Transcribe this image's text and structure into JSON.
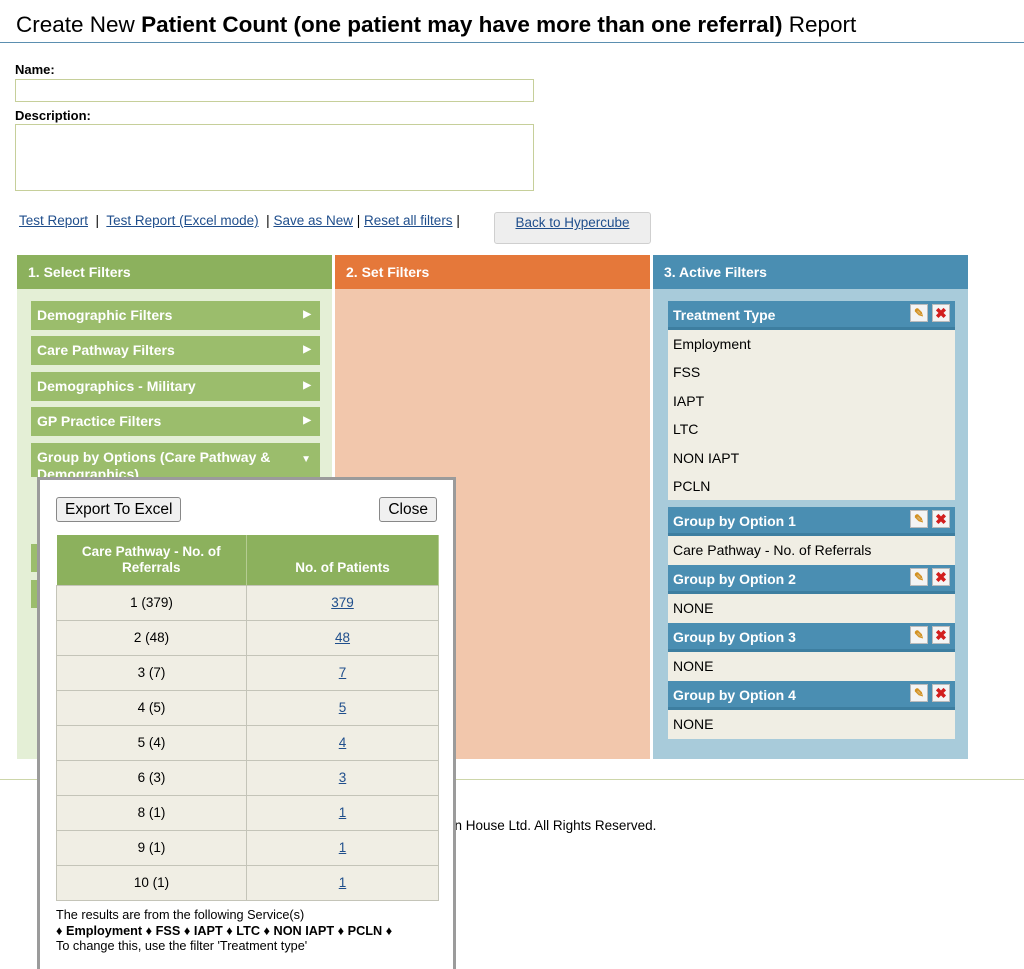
{
  "title": {
    "prefix": "Create New",
    "bold": "Patient Count (one patient may have more than one referral)",
    "suffix": "Report"
  },
  "form": {
    "name_label": "Name:",
    "name_value": "",
    "description_label": "Description:",
    "description_value": ""
  },
  "links": {
    "test_report": "Test Report",
    "test_report_excel": "Test Report (Excel mode)",
    "save_as_new": "Save as New",
    "reset_all": "Reset all filters",
    "separator": "|",
    "back_to_hypercube": "Back to Hypercube"
  },
  "panels": {
    "select": {
      "title": "1. Select Filters",
      "items": [
        "Demographic Filters",
        "Care Pathway Filters",
        "Demographics - Military",
        "GP Practice Filters",
        "Group by Options (Care Pathway & Demographics)"
      ]
    },
    "set": {
      "title": "2. Set Filters"
    },
    "active": {
      "title": "3. Active Filters",
      "groups": [
        {
          "name": "Treatment Type",
          "values": [
            "Employment",
            "FSS",
            "IAPT",
            "LTC",
            "NON IAPT",
            "PCLN"
          ]
        },
        {
          "name": "Group by Option 1",
          "values": [
            "Care Pathway - No. of Referrals"
          ]
        },
        {
          "name": "Group by Option 2",
          "values": [
            "NONE"
          ]
        },
        {
          "name": "Group by Option 3",
          "values": [
            "NONE"
          ]
        },
        {
          "name": "Group by Option 4",
          "values": [
            "NONE"
          ]
        }
      ]
    }
  },
  "popup": {
    "export_label": "Export To Excel",
    "close_label": "Close",
    "columns": [
      "Care Pathway - No. of Referrals",
      "No. of Patients"
    ],
    "rows": [
      {
        "group": "1 (379)",
        "patients": "379"
      },
      {
        "group": "2 (48)",
        "patients": "48"
      },
      {
        "group": "3 (7)",
        "patients": "7"
      },
      {
        "group": "4 (5)",
        "patients": "5"
      },
      {
        "group": "5 (4)",
        "patients": "4"
      },
      {
        "group": "6 (3)",
        "patients": "3"
      },
      {
        "group": "8 (1)",
        "patients": "1"
      },
      {
        "group": "9 (1)",
        "patients": "1"
      },
      {
        "group": "10 (1)",
        "patients": "1"
      }
    ],
    "note_line1": "The results are from the following Service(s)",
    "note_services": "♦ Employment ♦ FSS ♦ IAPT ♦ LTC ♦ NON IAPT ♦ PCLN ♦",
    "note_line3": "To change this, use the filter 'Treatment type'"
  },
  "footer": {
    "copyright_visible": "en House Ltd. All Rights Reserved."
  },
  "icons": {
    "arrow_right": "▶",
    "arrow_down": "▼",
    "edit": "✎",
    "delete": "✖"
  },
  "colors": {
    "green": "#8cb15d",
    "orange": "#e5783a",
    "blue": "#4a8eb2"
  }
}
